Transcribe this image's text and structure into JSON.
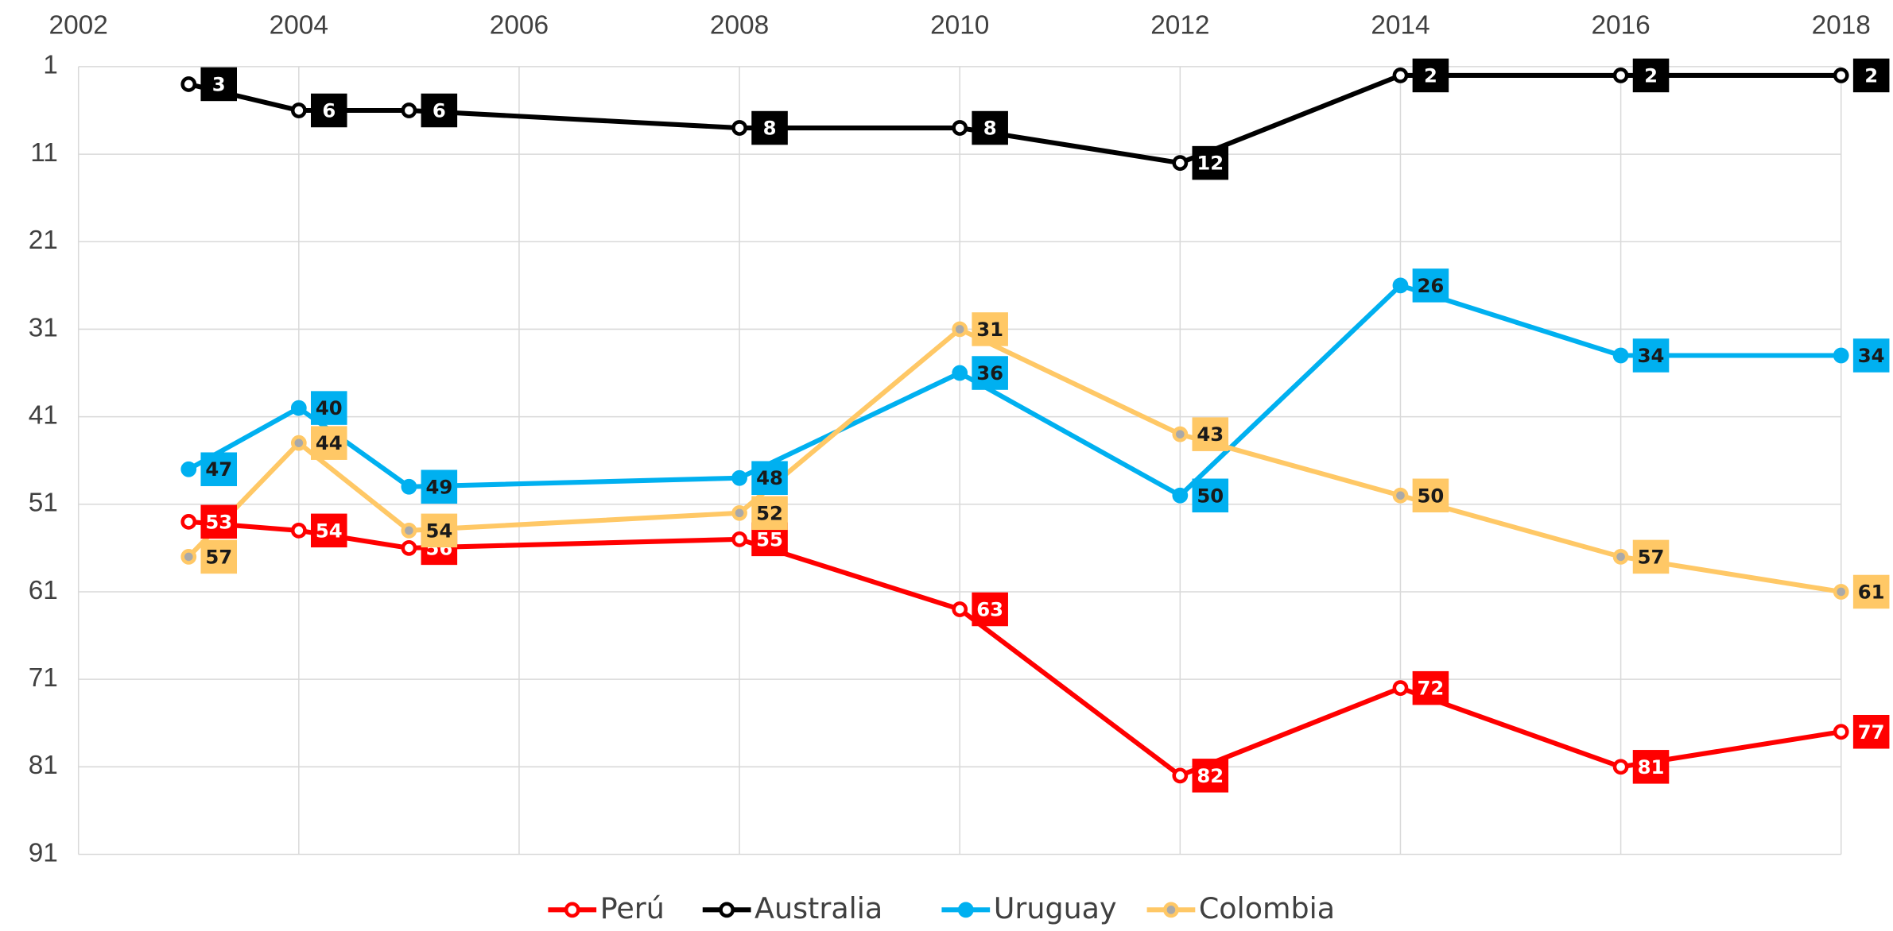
{
  "chart_data": {
    "type": "line",
    "x": [
      2003,
      2004,
      2005,
      2008,
      2010,
      2012,
      2014,
      2016,
      2018
    ],
    "series": [
      {
        "name": "Perú",
        "color": "#ff0000",
        "label_color": "#ffffff",
        "marker_fill": "#ffffff",
        "values": [
          53,
          54,
          56,
          55,
          63,
          82,
          72,
          81,
          77
        ]
      },
      {
        "name": "Australia",
        "color": "#000000",
        "label_color": "#ffffff",
        "marker_fill": "#ffffff",
        "values": [
          3,
          6,
          6,
          8,
          8,
          12,
          2,
          2,
          2
        ]
      },
      {
        "name": "Uruguay",
        "color": "#00b0f0",
        "label_color": "#1a1a1a",
        "marker_fill": "#00b0f0",
        "values": [
          47,
          40,
          49,
          48,
          36,
          50,
          26,
          34,
          34
        ]
      },
      {
        "name": "Colombia",
        "color": "#ffc866",
        "label_color": "#1a1a1a",
        "marker_fill": "#a9a9a9",
        "values": [
          57,
          44,
          54,
          52,
          31,
          43,
          50,
          57,
          61
        ]
      }
    ],
    "xlim": [
      2002,
      2018
    ],
    "xticks": [
      2002,
      2004,
      2006,
      2008,
      2010,
      2012,
      2014,
      2016,
      2018
    ],
    "ylim": [
      1,
      91
    ],
    "yticks": [
      1,
      11,
      21,
      31,
      41,
      51,
      61,
      71,
      81,
      91
    ],
    "y_reversed": true,
    "grid": true,
    "x_axis_position": "top",
    "legend": "bottom"
  }
}
